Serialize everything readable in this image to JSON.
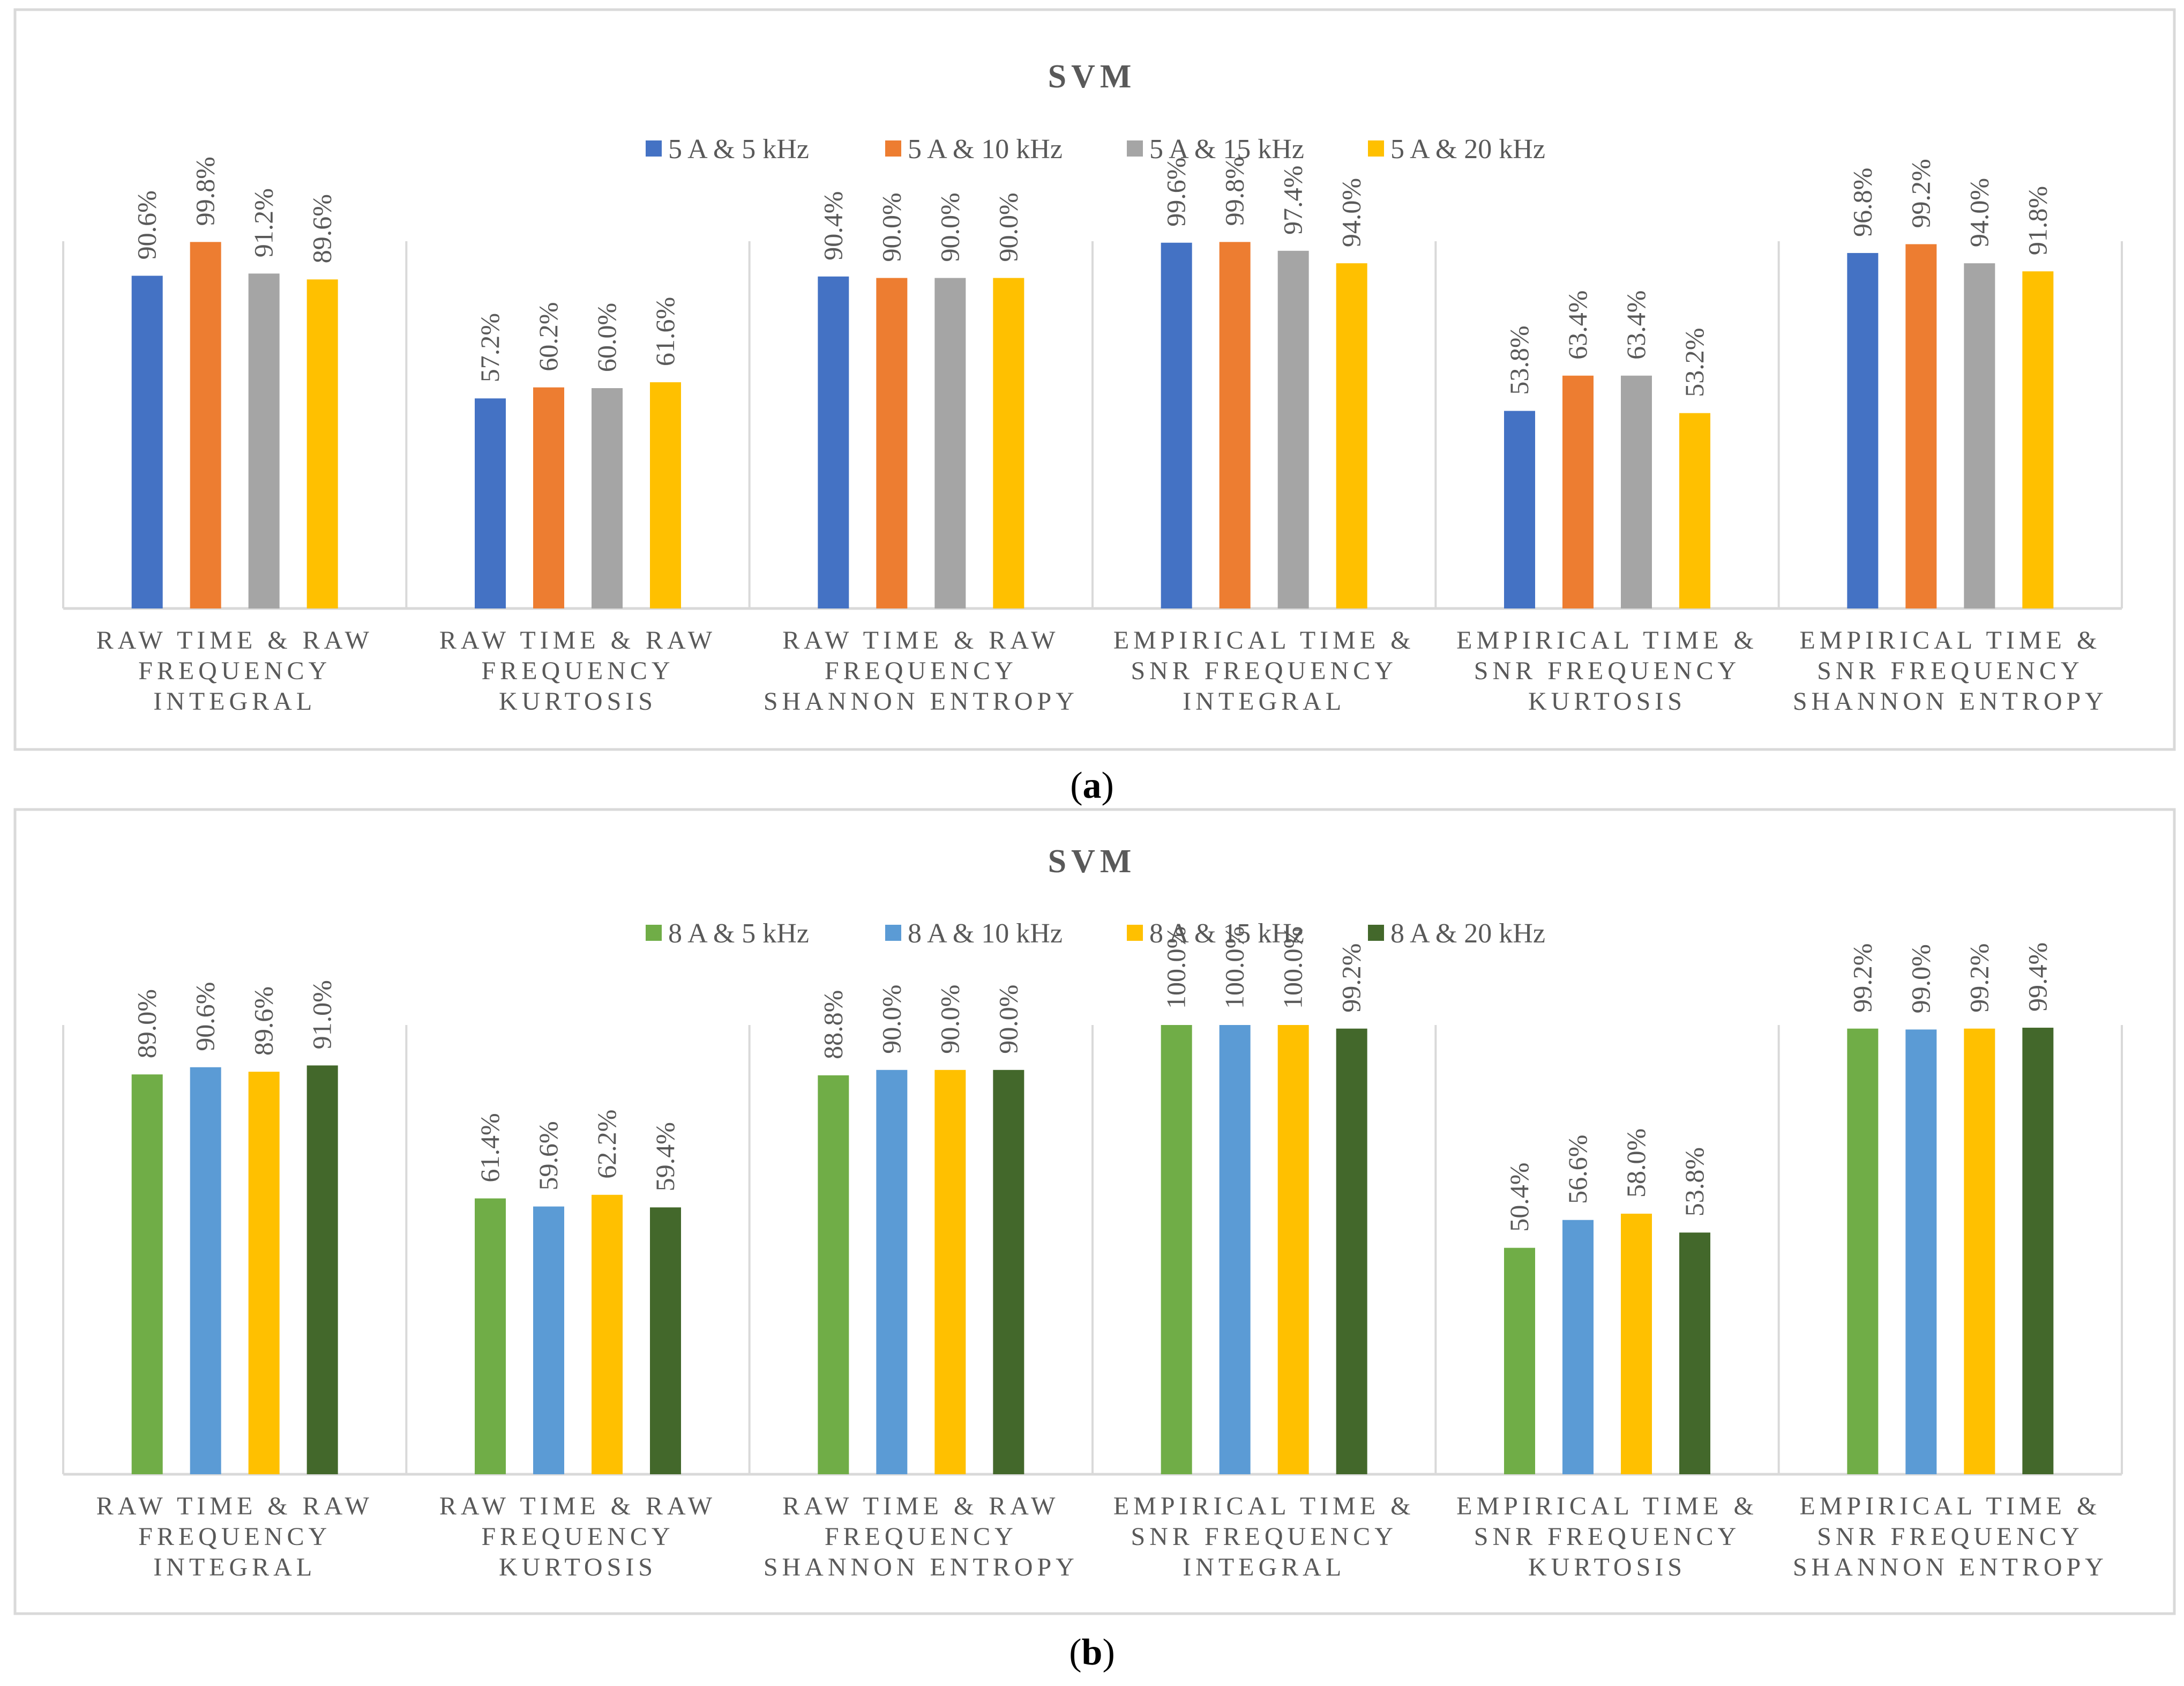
{
  "figure": {
    "panel_a_caption": "a",
    "panel_b_caption": "b"
  },
  "chart_data": [
    {
      "type": "bar",
      "panel": "a",
      "title": "SVM",
      "xlabel": "",
      "ylabel": "",
      "ylim": [
        0,
        100
      ],
      "grid": false,
      "legend_position": "top",
      "value_format": "percent-1dp",
      "categories": [
        "RAW TIME & RAW FREQUENCY INTEGRAL",
        "RAW TIME & RAW FREQUENCY KURTOSIS",
        "RAW TIME & RAW FREQUENCY SHANNON ENTROPY",
        "EMPIRICAL TIME & SNR FREQUENCY INTEGRAL",
        "EMPIRICAL TIME & SNR FREQUENCY KURTOSIS",
        "EMPIRICAL TIME & SNR FREQUENCY SHANNON ENTROPY"
      ],
      "category_lines": [
        [
          "RAW TIME & RAW",
          "FREQUENCY",
          "INTEGRAL"
        ],
        [
          "RAW TIME & RAW",
          "FREQUENCY",
          "KURTOSIS"
        ],
        [
          "RAW TIME & RAW",
          "FREQUENCY",
          "SHANNON ENTROPY"
        ],
        [
          "EMPIRICAL TIME &",
          "SNR FREQUENCY",
          "INTEGRAL"
        ],
        [
          "EMPIRICAL TIME &",
          "SNR FREQUENCY",
          "KURTOSIS"
        ],
        [
          "EMPIRICAL TIME &",
          "SNR FREQUENCY",
          "SHANNON ENTROPY"
        ]
      ],
      "series": [
        {
          "name": "5 A & 5 kHz",
          "color": "#4472C4",
          "values": [
            90.6,
            57.2,
            90.4,
            99.6,
            53.8,
            96.8
          ]
        },
        {
          "name": "5 A & 10 kHz",
          "color": "#ED7D31",
          "values": [
            99.8,
            60.2,
            90.0,
            99.8,
            63.4,
            99.2
          ]
        },
        {
          "name": "5 A & 15 kHz",
          "color": "#A5A5A5",
          "values": [
            91.2,
            60.0,
            90.0,
            97.4,
            63.4,
            94.0
          ]
        },
        {
          "name": "5 A & 20 kHz",
          "color": "#FFC000",
          "values": [
            89.6,
            61.6,
            90.0,
            94.0,
            53.2,
            91.8
          ]
        }
      ]
    },
    {
      "type": "bar",
      "panel": "b",
      "title": "SVM",
      "xlabel": "",
      "ylabel": "",
      "ylim": [
        0,
        100
      ],
      "grid": false,
      "legend_position": "top",
      "value_format": "percent-1dp",
      "categories": [
        "RAW TIME & RAW FREQUENCY INTEGRAL",
        "RAW TIME & RAW FREQUENCY KURTOSIS",
        "RAW TIME & RAW FREQUENCY SHANNON ENTROPY",
        "EMPIRICAL TIME & SNR FREQUENCY INTEGRAL",
        "EMPIRICAL TIME & SNR FREQUENCY KURTOSIS",
        "EMPIRICAL TIME & SNR FREQUENCY SHANNON ENTROPY"
      ],
      "category_lines": [
        [
          "RAW TIME & RAW",
          "FREQUENCY",
          "INTEGRAL"
        ],
        [
          "RAW TIME & RAW",
          "FREQUENCY",
          "KURTOSIS"
        ],
        [
          "RAW TIME & RAW",
          "FREQUENCY",
          "SHANNON ENTROPY"
        ],
        [
          "EMPIRICAL TIME &",
          "SNR FREQUENCY",
          "INTEGRAL"
        ],
        [
          "EMPIRICAL TIME &",
          "SNR FREQUENCY",
          "KURTOSIS"
        ],
        [
          "EMPIRICAL TIME &",
          "SNR FREQUENCY",
          "SHANNON ENTROPY"
        ]
      ],
      "series": [
        {
          "name": "8 A & 5 kHz",
          "color": "#70AD47",
          "values": [
            89.0,
            61.4,
            88.8,
            100.0,
            50.4,
            99.2
          ]
        },
        {
          "name": "8 A & 10 kHz",
          "color": "#5B9BD5",
          "values": [
            90.6,
            59.6,
            90.0,
            100.0,
            56.6,
            99.0
          ]
        },
        {
          "name": "8 A & 15 kHz",
          "color": "#FFC000",
          "values": [
            89.6,
            62.2,
            90.0,
            100.0,
            58.0,
            99.2
          ]
        },
        {
          "name": "8 A & 20 kHz",
          "color": "#43682B",
          "values": [
            91.0,
            59.4,
            90.0,
            99.2,
            53.8,
            99.4
          ]
        }
      ]
    }
  ]
}
